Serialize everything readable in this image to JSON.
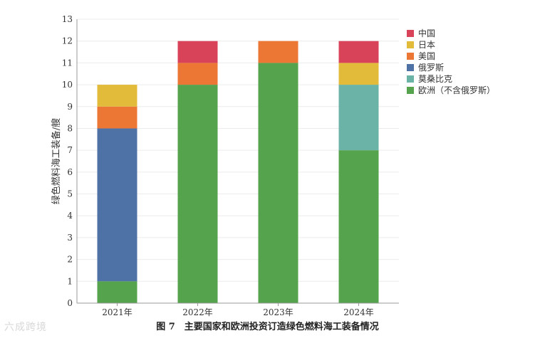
{
  "chart_data": {
    "type": "bar",
    "stacked": true,
    "categories": [
      "2021年",
      "2022年",
      "2023年",
      "2024年"
    ],
    "ylabel": "绿色燃料海工装备/艘",
    "ylim": [
      0,
      13
    ],
    "yticks": [
      0,
      1,
      2,
      3,
      4,
      5,
      6,
      7,
      8,
      9,
      10,
      11,
      12,
      13
    ],
    "grid": true,
    "legend_position": "top-right",
    "series": [
      {
        "name": "欧洲（不含俄罗斯）",
        "color": "#55a34c",
        "values": [
          1,
          10,
          11,
          7
        ]
      },
      {
        "name": "莫桑比克",
        "color": "#6bb3a6",
        "values": [
          0,
          0,
          0,
          3
        ]
      },
      {
        "name": "俄罗斯",
        "color": "#4e72a6",
        "values": [
          7,
          0,
          0,
          0
        ]
      },
      {
        "name": "美国",
        "color": "#ec7634",
        "values": [
          1,
          1,
          1,
          0
        ]
      },
      {
        "name": "日本",
        "color": "#e3bb3b",
        "values": [
          1,
          0,
          0,
          1
        ]
      },
      {
        "name": "中国",
        "color": "#d9435a",
        "values": [
          0,
          1,
          0,
          1
        ]
      }
    ],
    "legend_order": [
      "中国",
      "日本",
      "美国",
      "俄罗斯",
      "莫桑比克",
      "欧洲（不含俄罗斯）"
    ]
  },
  "caption": "图 7　主要国家和欧洲投资订造绿色燃料海工装备情况",
  "watermark": "六成跨境"
}
